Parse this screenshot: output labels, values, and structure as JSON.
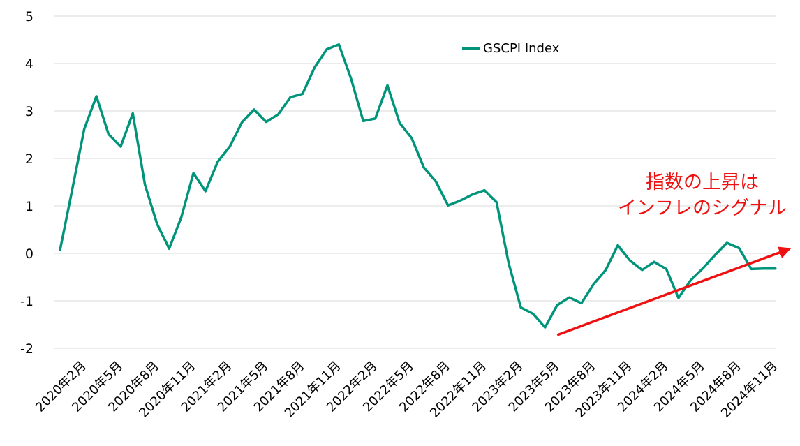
{
  "chart_data": {
    "type": "line",
    "ylim": [
      -2,
      5
    ],
    "y_ticks": [
      "5",
      "4",
      "3",
      "2",
      "1",
      "0",
      "-1",
      "-2"
    ],
    "grid": "horizontal",
    "x_tick_labels": [
      "2020年2月",
      "2020年5月",
      "2020年8月",
      "2020年11月",
      "2021年2月",
      "2021年5月",
      "2021年8月",
      "2021年11月",
      "2022年2月",
      "2022年5月",
      "2022年8月",
      "2022年11月",
      "2023年2月",
      "2023年5月",
      "2023年8月",
      "2023年11月",
      "2024年2月",
      "2024年5月",
      "2024年8月",
      "2024年11月"
    ],
    "x": [
      "2020-01",
      "2020-02",
      "2020-03",
      "2020-04",
      "2020-05",
      "2020-06",
      "2020-07",
      "2020-08",
      "2020-09",
      "2020-10",
      "2020-11",
      "2020-12",
      "2021-01",
      "2021-02",
      "2021-03",
      "2021-04",
      "2021-05",
      "2021-06",
      "2021-07",
      "2021-08",
      "2021-09",
      "2021-10",
      "2021-11",
      "2021-12",
      "2022-01",
      "2022-02",
      "2022-03",
      "2022-04",
      "2022-05",
      "2022-06",
      "2022-07",
      "2022-08",
      "2022-09",
      "2022-10",
      "2022-11",
      "2022-12",
      "2023-01",
      "2023-02",
      "2023-03",
      "2023-04",
      "2023-05",
      "2023-06",
      "2023-07",
      "2023-08",
      "2023-09",
      "2023-10",
      "2023-11",
      "2023-12",
      "2024-01",
      "2024-02",
      "2024-03",
      "2024-04",
      "2024-05",
      "2024-06",
      "2024-07",
      "2024-08",
      "2024-09",
      "2024-10",
      "2024-11",
      "2024-12"
    ],
    "series": [
      {
        "name": "GSCPI Index",
        "color": "#00947a",
        "values": [
          0.07,
          1.34,
          2.62,
          3.31,
          2.51,
          2.25,
          2.95,
          1.45,
          0.62,
          0.1,
          0.76,
          1.69,
          1.31,
          1.93,
          2.25,
          2.76,
          3.03,
          2.77,
          2.93,
          3.29,
          3.36,
          3.92,
          4.3,
          4.4,
          3.68,
          2.79,
          2.84,
          3.54,
          2.75,
          2.43,
          1.81,
          1.51,
          1.01,
          1.11,
          1.24,
          1.33,
          1.08,
          -0.21,
          -1.14,
          -1.27,
          -1.56,
          -1.09,
          -0.93,
          -1.05,
          -0.65,
          -0.35,
          0.17,
          -0.15,
          -0.35,
          -0.18,
          -0.33,
          -0.94,
          -0.57,
          -0.32,
          -0.04,
          0.22,
          0.11,
          -0.33,
          -0.32,
          -0.32
        ]
      }
    ],
    "trend_arrow": {
      "color": "#ee1111",
      "from": {
        "x": "2023-06",
        "y": -1.72
      },
      "to": {
        "x": "2025-01",
        "y": 0.08
      }
    },
    "annotation": {
      "lines": [
        "指数の上昇は",
        "インフレのシグナル"
      ],
      "color": "#ee1111"
    }
  }
}
